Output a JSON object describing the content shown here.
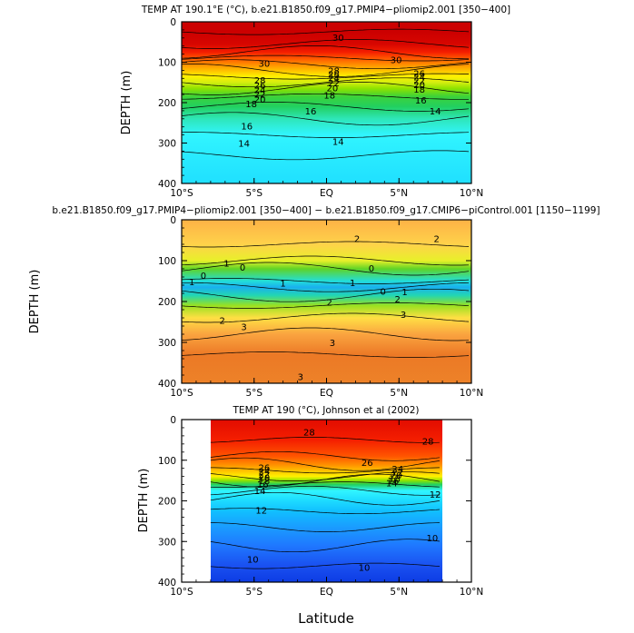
{
  "chart_data": [
    {
      "type": "heatmap",
      "title": "TEMP AT 190.1°E (°C), b.e21.B1850.f09_g17.PMIP4−pliomip2.001 [350−400]",
      "xlabel": "",
      "ylabel": "DEPTH (m)",
      "xlim": [
        -10,
        10
      ],
      "ylim": [
        400,
        0
      ],
      "x_ticks": [
        -10,
        -5,
        0,
        5,
        10
      ],
      "x_tick_labels": [
        "10°S",
        "5°S",
        "EQ",
        "5°N",
        "10°N"
      ],
      "y_ticks": [
        0,
        100,
        200,
        300,
        400
      ],
      "y_tick_labels": [
        "0",
        "100",
        "200",
        "300",
        "400"
      ],
      "bands": [
        {
          "y": 0,
          "v": 30
        },
        {
          "y": 25,
          "v": 30
        },
        {
          "y": 55,
          "v": 29.5
        },
        {
          "y": 75,
          "v": 28
        },
        {
          "y": 90,
          "v": 26
        },
        {
          "y": 105,
          "v": 24
        },
        {
          "y": 120,
          "v": 22
        },
        {
          "y": 135,
          "v": 20
        },
        {
          "y": 150,
          "v": 19
        },
        {
          "y": 165,
          "v": 18
        },
        {
          "y": 185,
          "v": 17
        },
        {
          "y": 210,
          "v": 16
        },
        {
          "y": 240,
          "v": 15
        },
        {
          "y": 280,
          "v": 14
        },
        {
          "y": 330,
          "v": 13.5
        },
        {
          "y": 400,
          "v": 13
        }
      ],
      "contour_labels": [
        {
          "x": -4.3,
          "y": 104,
          "text": "30"
        },
        {
          "x": 0.8,
          "y": 40,
          "text": "30"
        },
        {
          "x": 4.8,
          "y": 96,
          "text": "30"
        },
        {
          "x": -4.6,
          "y": 146,
          "text": "28"
        },
        {
          "x": -4.6,
          "y": 158,
          "text": "26"
        },
        {
          "x": -4.6,
          "y": 170,
          "text": "24"
        },
        {
          "x": -4.6,
          "y": 181,
          "text": "22"
        },
        {
          "x": -4.6,
          "y": 193,
          "text": "20"
        },
        {
          "x": -5.2,
          "y": 205,
          "text": "18"
        },
        {
          "x": -5.5,
          "y": 260,
          "text": "16"
        },
        {
          "x": -5.7,
          "y": 302,
          "text": "14"
        },
        {
          "x": 0.5,
          "y": 122,
          "text": "28"
        },
        {
          "x": 0.5,
          "y": 131,
          "text": "26"
        },
        {
          "x": 0.5,
          "y": 140,
          "text": "24"
        },
        {
          "x": 0.5,
          "y": 153,
          "text": "22"
        },
        {
          "x": 0.4,
          "y": 165,
          "text": "20"
        },
        {
          "x": 0.2,
          "y": 183,
          "text": "18"
        },
        {
          "x": -1.1,
          "y": 222,
          "text": "16"
        },
        {
          "x": 0.8,
          "y": 298,
          "text": "14"
        },
        {
          "x": 6.4,
          "y": 129,
          "text": "26"
        },
        {
          "x": 6.4,
          "y": 138,
          "text": "24"
        },
        {
          "x": 6.4,
          "y": 147,
          "text": "22"
        },
        {
          "x": 6.4,
          "y": 157,
          "text": "20"
        },
        {
          "x": 6.4,
          "y": 168,
          "text": "18"
        },
        {
          "x": 6.5,
          "y": 195,
          "text": "16"
        },
        {
          "x": 7.5,
          "y": 222,
          "text": "14"
        }
      ]
    },
    {
      "type": "heatmap",
      "title": "b.e21.B1850.f09_g17.PMIP4−pliomip2.001 [350−400] − b.e21.B1850.f09_g17.CMIP6−piControl.001 [1150−1199]",
      "xlabel": "",
      "ylabel": "DEPTH (m)",
      "xlim": [
        -10,
        10
      ],
      "ylim": [
        400,
        0
      ],
      "x_ticks": [
        -10,
        -5,
        0,
        5,
        10
      ],
      "x_tick_labels": [
        "10°S",
        "5°S",
        "EQ",
        "5°N",
        "10°N"
      ],
      "y_ticks": [
        0,
        100,
        200,
        300,
        400
      ],
      "y_tick_labels": [
        "0",
        "100",
        "200",
        "300",
        "400"
      ],
      "bands": [
        {
          "y": 0,
          "v": 2.4
        },
        {
          "y": 60,
          "v": 2
        },
        {
          "y": 100,
          "v": 1.2
        },
        {
          "y": 120,
          "v": 0.4
        },
        {
          "y": 150,
          "v": -0.8
        },
        {
          "y": 165,
          "v": -1.6
        },
        {
          "y": 185,
          "v": -0.6
        },
        {
          "y": 210,
          "v": 0.7
        },
        {
          "y": 240,
          "v": 1.8
        },
        {
          "y": 280,
          "v": 2.6
        },
        {
          "y": 330,
          "v": 3.2
        },
        {
          "y": 400,
          "v": 3.1
        }
      ],
      "contour_labels": [
        {
          "x": 2.1,
          "y": 48,
          "text": "2"
        },
        {
          "x": 7.6,
          "y": 48,
          "text": "2"
        },
        {
          "x": -6.9,
          "y": 108,
          "text": "1"
        },
        {
          "x": -5.8,
          "y": 118,
          "text": "0"
        },
        {
          "x": 1.8,
          "y": 155,
          "text": "1"
        },
        {
          "x": 3.1,
          "y": 120,
          "text": "0"
        },
        {
          "x": -3.0,
          "y": 157,
          "text": "1"
        },
        {
          "x": -8.5,
          "y": 138,
          "text": "0"
        },
        {
          "x": -9.3,
          "y": 153,
          "text": "1"
        },
        {
          "x": 3.9,
          "y": 177,
          "text": "0"
        },
        {
          "x": 5.4,
          "y": 178,
          "text": "1"
        },
        {
          "x": 0.2,
          "y": 203,
          "text": "2"
        },
        {
          "x": 4.9,
          "y": 196,
          "text": "2"
        },
        {
          "x": 5.3,
          "y": 233,
          "text": "3"
        },
        {
          "x": -7.2,
          "y": 248,
          "text": "2"
        },
        {
          "x": -5.7,
          "y": 263,
          "text": "3"
        },
        {
          "x": 0.4,
          "y": 302,
          "text": "3"
        },
        {
          "x": -1.8,
          "y": 385,
          "text": "3"
        }
      ]
    },
    {
      "type": "heatmap",
      "title": "TEMP AT 190 (°C), Johnson et al (2002)",
      "xlabel": "Latitude",
      "ylabel": "DEPTH (m)",
      "xlim": [
        -10,
        10
      ],
      "ylim": [
        400,
        0
      ],
      "data_xlim": [
        -8,
        8
      ],
      "x_ticks": [
        -10,
        -5,
        0,
        5,
        10
      ],
      "x_tick_labels": [
        "10°S",
        "5°S",
        "EQ",
        "5°N",
        "10°N"
      ],
      "y_ticks": [
        0,
        100,
        200,
        300,
        400
      ],
      "y_tick_labels": [
        "0",
        "100",
        "200",
        "300",
        "400"
      ],
      "bands": [
        {
          "y": 0,
          "v": 29
        },
        {
          "y": 50,
          "v": 28
        },
        {
          "y": 90,
          "v": 26
        },
        {
          "y": 110,
          "v": 24
        },
        {
          "y": 125,
          "v": 22
        },
        {
          "y": 140,
          "v": 20
        },
        {
          "y": 150,
          "v": 18
        },
        {
          "y": 160,
          "v": 16
        },
        {
          "y": 175,
          "v": 14
        },
        {
          "y": 195,
          "v": 13
        },
        {
          "y": 225,
          "v": 12
        },
        {
          "y": 265,
          "v": 11
        },
        {
          "y": 310,
          "v": 10
        },
        {
          "y": 360,
          "v": 9
        },
        {
          "y": 400,
          "v": 8.5
        }
      ],
      "contour_labels": [
        {
          "x": -1.2,
          "y": 32,
          "text": "28"
        },
        {
          "x": 7.0,
          "y": 55,
          "text": "28"
        },
        {
          "x": 2.8,
          "y": 107,
          "text": "26"
        },
        {
          "x": -4.3,
          "y": 120,
          "text": "26"
        },
        {
          "x": -4.3,
          "y": 128,
          "text": "24"
        },
        {
          "x": -4.3,
          "y": 136,
          "text": "22"
        },
        {
          "x": -4.3,
          "y": 144,
          "text": "20"
        },
        {
          "x": -4.3,
          "y": 152,
          "text": "18"
        },
        {
          "x": -4.4,
          "y": 161,
          "text": "16"
        },
        {
          "x": -4.6,
          "y": 176,
          "text": "14"
        },
        {
          "x": 4.9,
          "y": 123,
          "text": "24"
        },
        {
          "x": 4.9,
          "y": 131,
          "text": "22"
        },
        {
          "x": 4.8,
          "y": 139,
          "text": "20"
        },
        {
          "x": 4.7,
          "y": 146,
          "text": "18"
        },
        {
          "x": 4.6,
          "y": 152,
          "text": "16"
        },
        {
          "x": 4.5,
          "y": 158,
          "text": "14"
        },
        {
          "x": 7.5,
          "y": 185,
          "text": "12"
        },
        {
          "x": -4.5,
          "y": 225,
          "text": "12"
        },
        {
          "x": 7.3,
          "y": 293,
          "text": "10"
        },
        {
          "x": -5.1,
          "y": 345,
          "text": "10"
        },
        {
          "x": 2.6,
          "y": 365,
          "text": "10"
        }
      ]
    }
  ],
  "colormaps": {
    "temperature": [
      {
        "v": 8,
        "c": "#0028d8"
      },
      {
        "v": 9,
        "c": "#1a50f0"
      },
      {
        "v": 10,
        "c": "#1f78ff"
      },
      {
        "v": 11,
        "c": "#1a9cff"
      },
      {
        "v": 12,
        "c": "#11c0ff"
      },
      {
        "v": 13,
        "c": "#20e0ff"
      },
      {
        "v": 14,
        "c": "#31f5ff"
      },
      {
        "v": 15,
        "c": "#2ee6b8"
      },
      {
        "v": 16,
        "c": "#22d060"
      },
      {
        "v": 17,
        "c": "#3cd23a"
      },
      {
        "v": 18,
        "c": "#8ee200"
      },
      {
        "v": 19,
        "c": "#d4ee10"
      },
      {
        "v": 20,
        "c": "#fff100"
      },
      {
        "v": 21,
        "c": "#ffda00"
      },
      {
        "v": 22,
        "c": "#ffbe00"
      },
      {
        "v": 23,
        "c": "#ffa600"
      },
      {
        "v": 24,
        "c": "#ff8c00"
      },
      {
        "v": 25,
        "c": "#ff7000"
      },
      {
        "v": 26,
        "c": "#ff5500"
      },
      {
        "v": 27,
        "c": "#ff3a00"
      },
      {
        "v": 28,
        "c": "#f41e00"
      },
      {
        "v": 29,
        "c": "#e20c00"
      },
      {
        "v": 30,
        "c": "#cc0000"
      }
    ],
    "difference": [
      {
        "v": -2,
        "c": "#2090e8"
      },
      {
        "v": -1.5,
        "c": "#19b8f0"
      },
      {
        "v": -1,
        "c": "#22e6ff"
      },
      {
        "v": -0.5,
        "c": "#22d2a0"
      },
      {
        "v": 0,
        "c": "#22c040"
      },
      {
        "v": 0.5,
        "c": "#70d820"
      },
      {
        "v": 1,
        "c": "#d8ee20"
      },
      {
        "v": 1.5,
        "c": "#fff23a"
      },
      {
        "v": 2,
        "c": "#ffd24a"
      },
      {
        "v": 2.5,
        "c": "#fdaa45"
      },
      {
        "v": 3,
        "c": "#ee8a2a"
      },
      {
        "v": 3.5,
        "c": "#e86020"
      },
      {
        "v": 4,
        "c": "#e61e10"
      }
    ]
  }
}
